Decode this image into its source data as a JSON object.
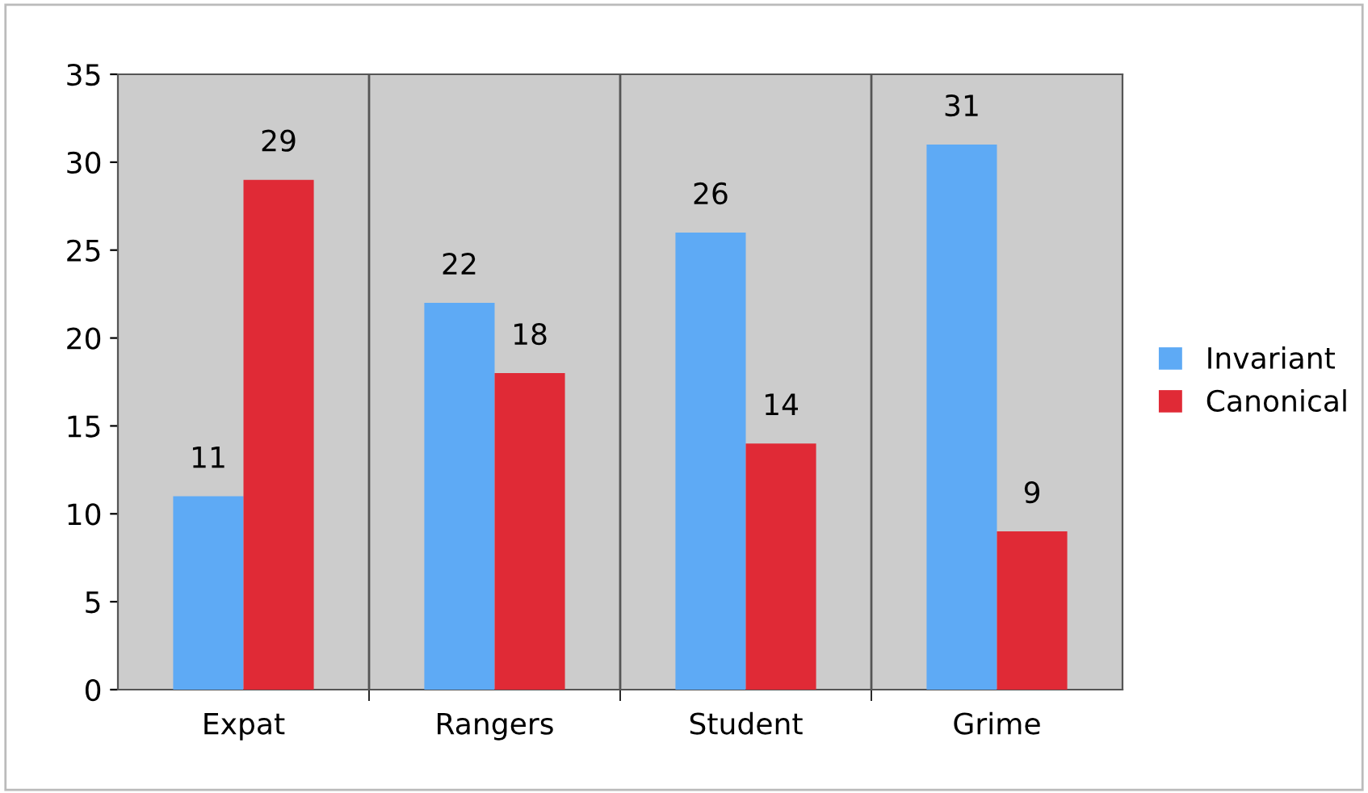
{
  "chart_data": {
    "type": "bar",
    "categories": [
      "Expat",
      "Rangers",
      "Student",
      "Grime"
    ],
    "series": [
      {
        "name": "Invariant",
        "color": "#5eaaf5",
        "values": [
          11,
          22,
          26,
          31
        ]
      },
      {
        "name": "Canonical",
        "color": "#e02a36",
        "values": [
          29,
          18,
          14,
          9
        ]
      }
    ],
    "ylim": [
      0,
      35
    ],
    "yticks": [
      0,
      5,
      10,
      15,
      20,
      25,
      30,
      35
    ],
    "grid": "x",
    "legend": "right",
    "data_labels": true
  }
}
